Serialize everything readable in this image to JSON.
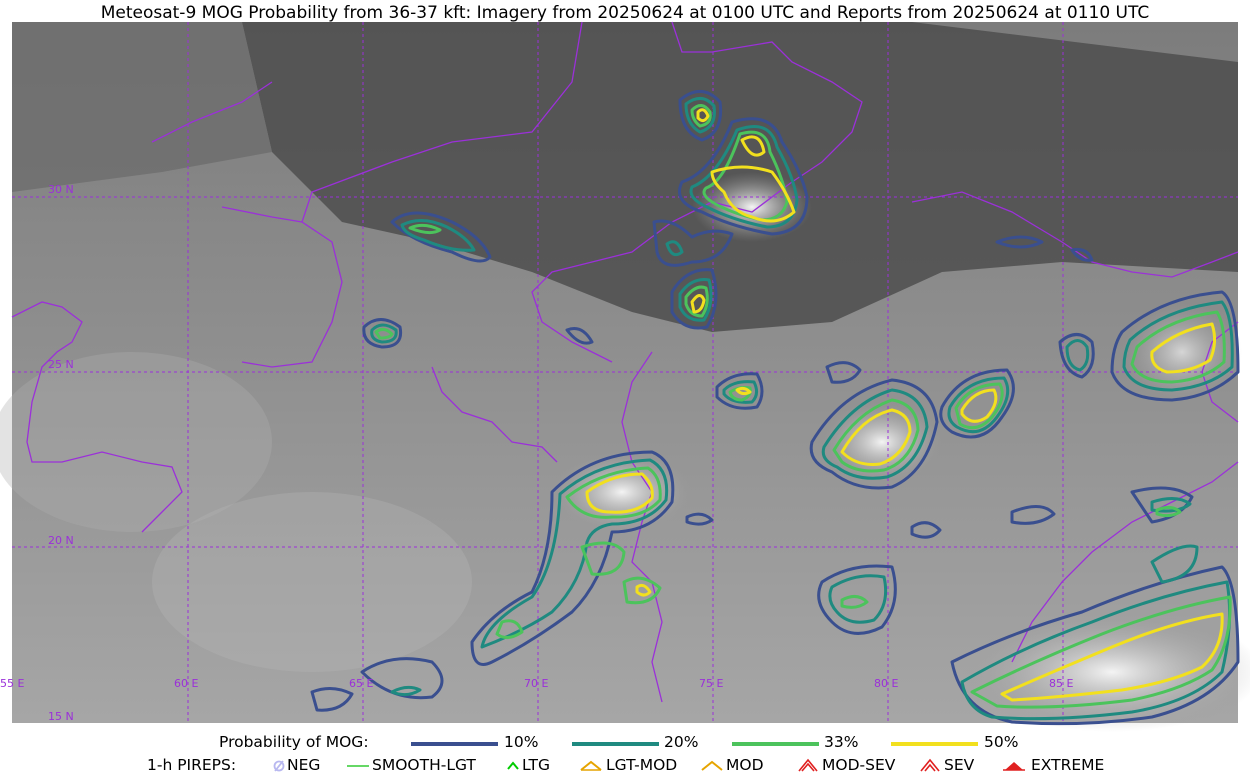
{
  "title": "Meteosat-9 MOG Probability from 36-37 kft: Imagery from 20250624 at 0100 UTC and Reports from 20250624 at 0110 UTC",
  "map": {
    "lat_labels": [
      "30 N",
      "25 N",
      "20 N",
      "15 N"
    ],
    "lon_labels": [
      "55 E",
      "60 E",
      "65 E",
      "70 E",
      "75 E",
      "80 E",
      "85 E"
    ],
    "grid_color": "#9b30d9",
    "border_color": "#9b30d9"
  },
  "legend_prob": {
    "label": "Probability of MOG:",
    "items": [
      {
        "text": "10%",
        "color": "#3a4f8f"
      },
      {
        "text": "20%",
        "color": "#1f8a80"
      },
      {
        "text": "33%",
        "color": "#4cc35c"
      },
      {
        "text": "50%",
        "color": "#f2e01e"
      }
    ]
  },
  "legend_pireps": {
    "label": "1-h PIREPS:",
    "items": [
      {
        "text": "NEG",
        "icon": "neg-icon",
        "color": "#b8b8f0"
      },
      {
        "text": "SMOOTH-LGT",
        "icon": "smooth-lgt-icon",
        "color": "#33cc33"
      },
      {
        "text": "LTG",
        "icon": "ltg-icon",
        "color": "#00cc00"
      },
      {
        "text": "LGT-MOD",
        "icon": "lgt-mod-icon",
        "color": "#e6a400"
      },
      {
        "text": "MOD",
        "icon": "mod-icon",
        "color": "#e6a400"
      },
      {
        "text": "MOD-SEV",
        "icon": "mod-sev-icon",
        "color": "#e02020"
      },
      {
        "text": "SEV",
        "icon": "sev-icon",
        "color": "#e02020"
      },
      {
        "text": "EXTREME",
        "icon": "extreme-icon",
        "color": "#e02020"
      }
    ]
  }
}
